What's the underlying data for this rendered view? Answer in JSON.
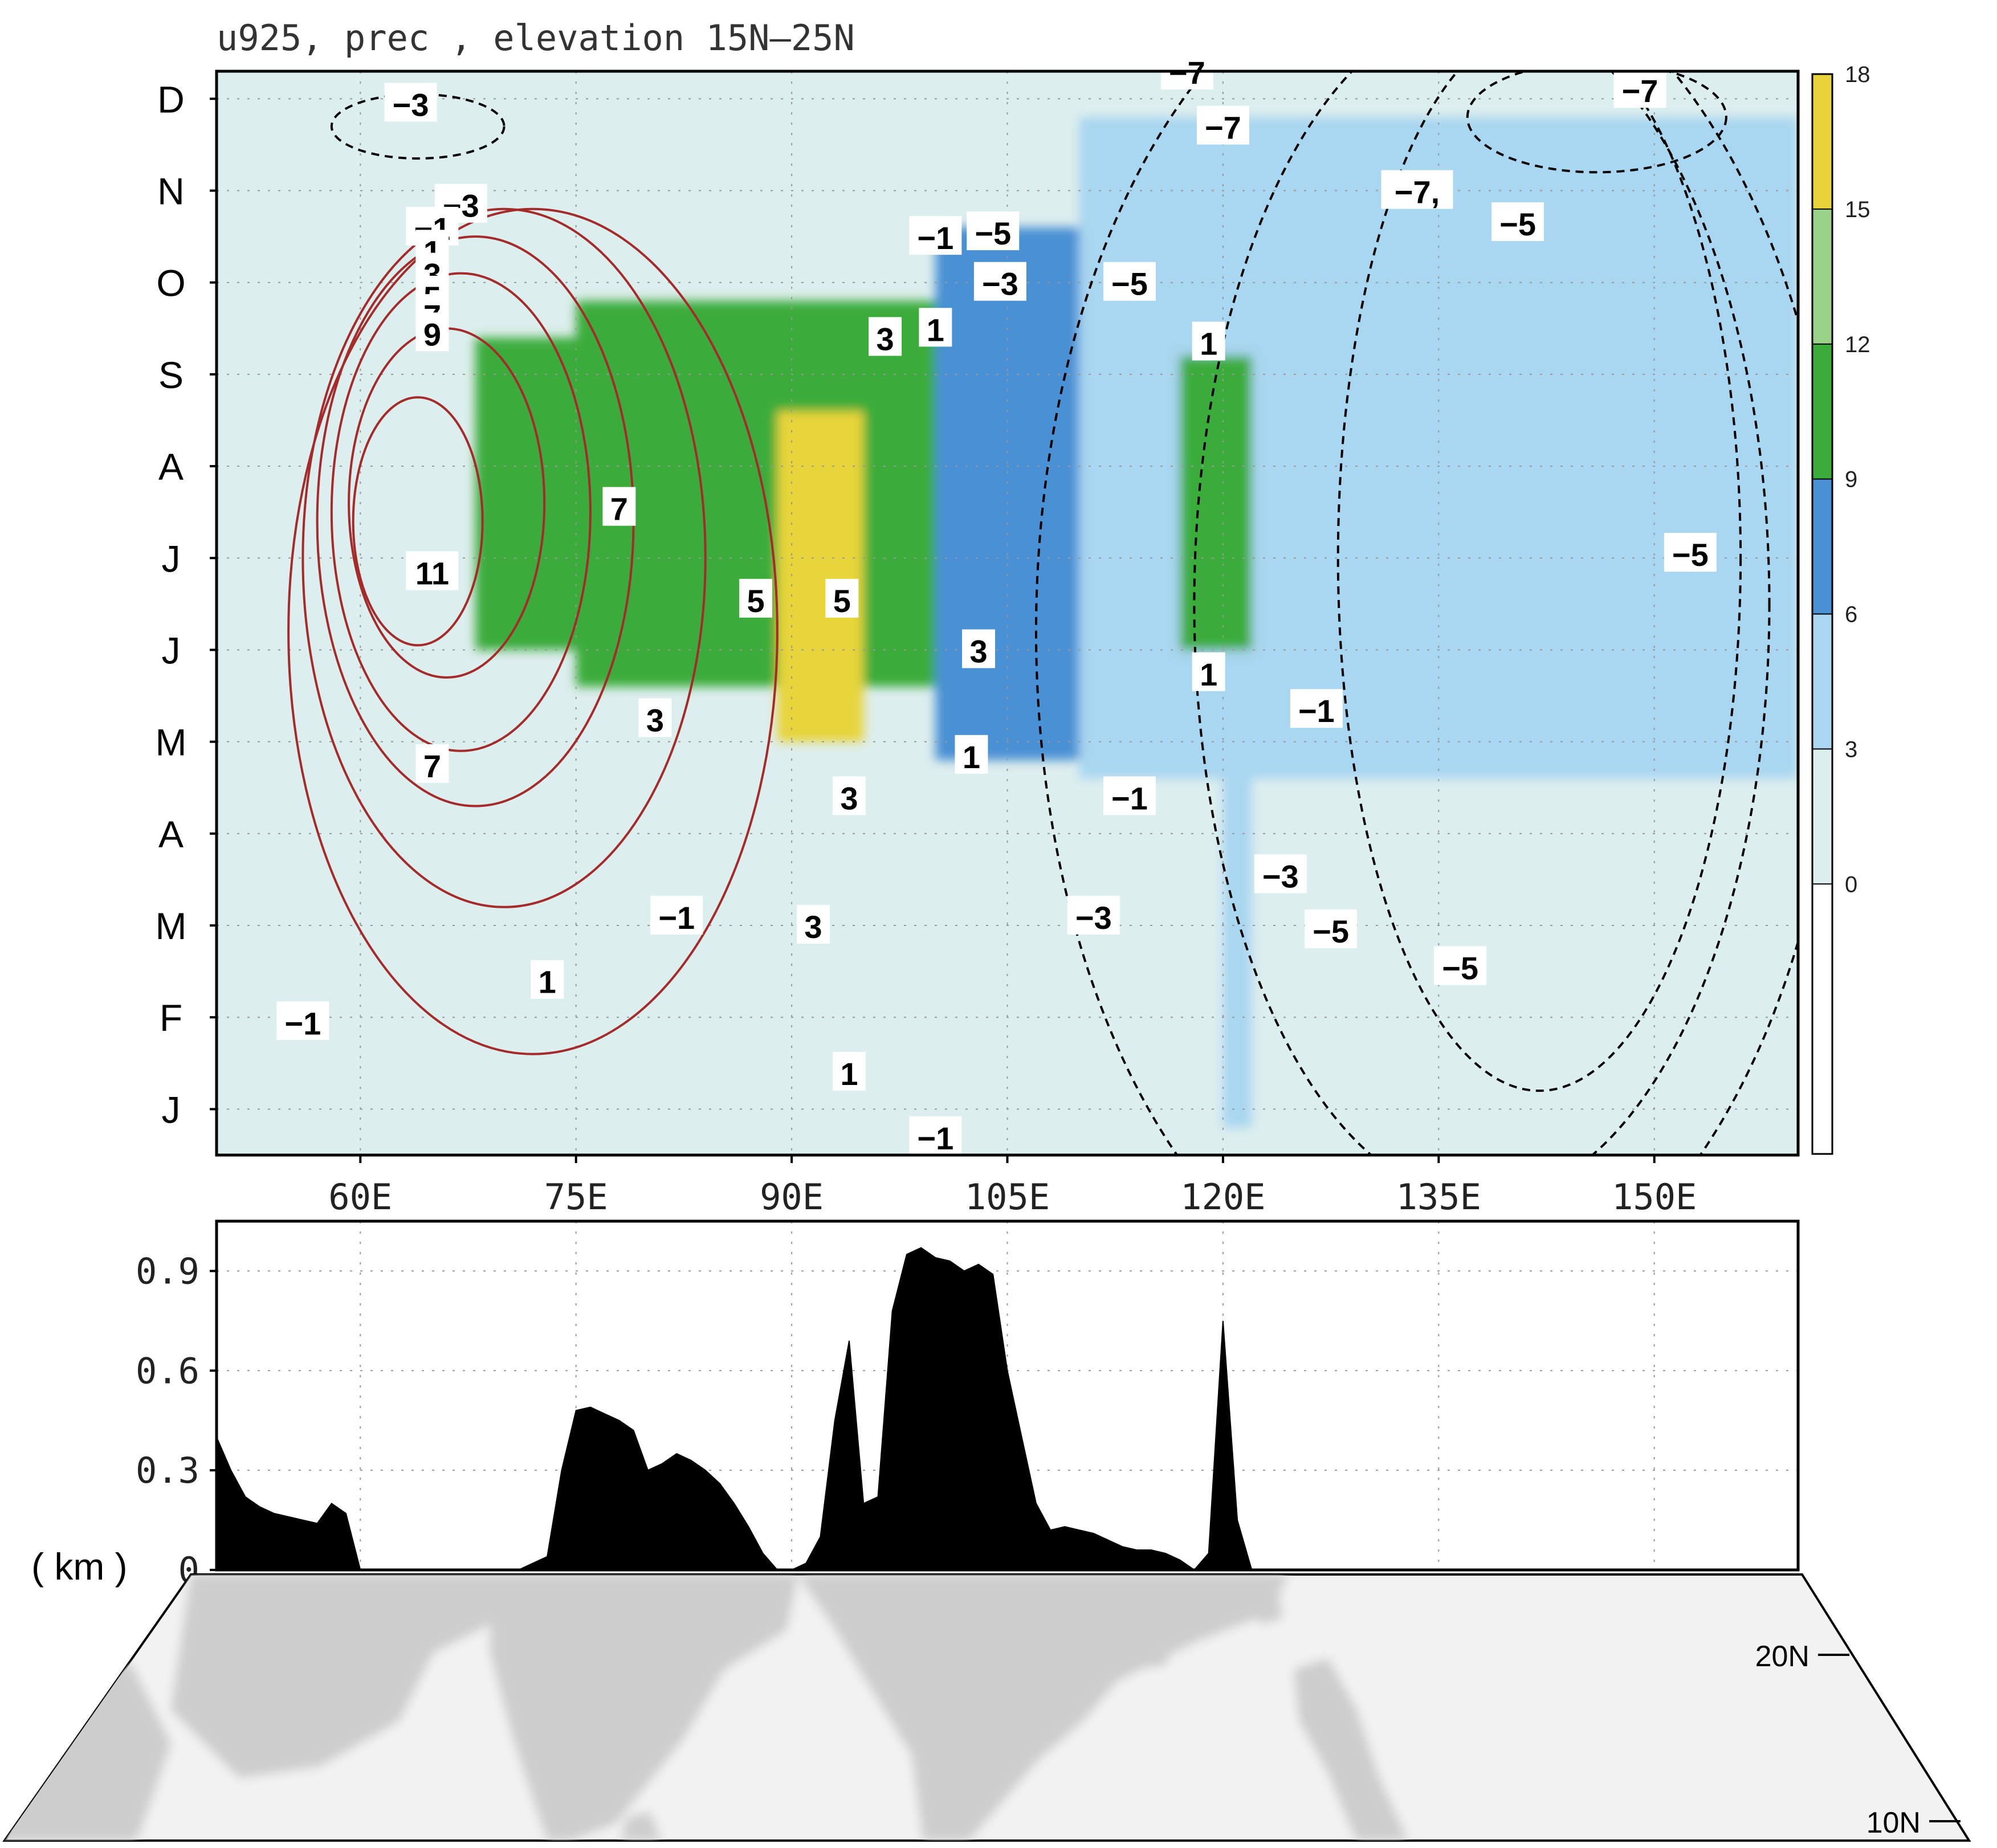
{
  "title": "u925, prec , elevation  15N–25N",
  "chart_data": [
    {
      "type": "heatmap",
      "title": "u925, prec , elevation  15N–25N",
      "x_ticks": [
        "60E",
        "75E",
        "90E",
        "105E",
        "120E",
        "135E",
        "150E"
      ],
      "x_tick_values": [
        60,
        75,
        90,
        105,
        120,
        135,
        150
      ],
      "xlim": [
        50,
        160
      ],
      "y_ticks": [
        "J",
        "F",
        "M",
        "A",
        "M",
        "J",
        "J",
        "A",
        "S",
        "O",
        "N",
        "D"
      ],
      "ylim": [
        0.5,
        12.3
      ],
      "colorbar": {
        "levels": [
          0,
          3,
          6,
          9,
          12,
          15,
          18
        ],
        "labels": [
          "0",
          "3",
          "6",
          "9",
          "12",
          "15",
          "18"
        ],
        "colors": [
          "#ffffff",
          "#ddeeee",
          "#a9d6f0",
          "#4a90d4",
          "#3aac3a",
          "#9ad28a",
          "#e8d43a"
        ]
      },
      "precip_regions": [
        {
          "x0": 68,
          "x1": 75,
          "y0": 6.0,
          "y1": 9.4,
          "value": 9
        },
        {
          "x0": 75,
          "x1": 100,
          "y0": 5.6,
          "y1": 9.8,
          "value": 10
        },
        {
          "x0": 89,
          "x1": 95,
          "y0": 5.0,
          "y1": 8.6,
          "value": 17
        },
        {
          "x0": 100,
          "x1": 110,
          "y0": 4.8,
          "y1": 10.6,
          "value": 6
        },
        {
          "x0": 110,
          "x1": 160,
          "y0": 4.6,
          "y1": 11.8,
          "value": 5
        },
        {
          "x0": 117,
          "x1": 122,
          "y0": 6.0,
          "y1": 9.2,
          "value": 10
        },
        {
          "x0": 120,
          "x1": 122,
          "y0": 0.8,
          "y1": 4.6,
          "value": 4
        }
      ],
      "contour_labels": [
        {
          "text": "−3",
          "x": 63.5,
          "y": 11.95,
          "sign": "neg"
        },
        {
          "text": "−3",
          "x": 67,
          "y": 10.85,
          "sign": "neg"
        },
        {
          "text": "−1",
          "x": 65,
          "y": 10.6,
          "sign": "neg"
        },
        {
          "text": "1",
          "x": 65,
          "y": 10.35,
          "sign": "pos"
        },
        {
          "text": "3",
          "x": 65,
          "y": 10.1,
          "sign": "pos"
        },
        {
          "text": "5",
          "x": 65,
          "y": 9.85,
          "sign": "pos"
        },
        {
          "text": "7",
          "x": 65,
          "y": 9.65,
          "sign": "pos"
        },
        {
          "text": "9",
          "x": 65,
          "y": 9.45,
          "sign": "pos"
        },
        {
          "text": "11",
          "x": 65,
          "y": 6.85,
          "sign": "pos"
        },
        {
          "text": "7",
          "x": 65,
          "y": 4.75,
          "sign": "pos"
        },
        {
          "text": "7",
          "x": 78,
          "y": 7.55,
          "sign": "pos"
        },
        {
          "text": "3",
          "x": 80.5,
          "y": 5.25,
          "sign": "pos"
        },
        {
          "text": "5",
          "x": 87.5,
          "y": 6.55,
          "sign": "pos"
        },
        {
          "text": "5",
          "x": 93.5,
          "y": 6.55,
          "sign": "pos"
        },
        {
          "text": "3",
          "x": 96.5,
          "y": 9.4,
          "sign": "pos"
        },
        {
          "text": "1",
          "x": 100,
          "y": 9.5,
          "sign": "pos"
        },
        {
          "text": "3",
          "x": 94,
          "y": 4.4,
          "sign": "pos"
        },
        {
          "text": "3",
          "x": 91.5,
          "y": 3.0,
          "sign": "pos"
        },
        {
          "text": "1",
          "x": 94,
          "y": 1.4,
          "sign": "pos"
        },
        {
          "text": "1",
          "x": 73,
          "y": 2.4,
          "sign": "pos"
        },
        {
          "text": "−1",
          "x": 82,
          "y": 3.1,
          "sign": "neg"
        },
        {
          "text": "−1",
          "x": 56,
          "y": 1.95,
          "sign": "neg"
        },
        {
          "text": "−1",
          "x": 100,
          "y": 0.7,
          "sign": "neg"
        },
        {
          "text": "3",
          "x": 103,
          "y": 6.0,
          "sign": "pos"
        },
        {
          "text": "1",
          "x": 102.5,
          "y": 4.85,
          "sign": "pos"
        },
        {
          "text": "−1",
          "x": 100,
          "y": 10.5,
          "sign": "neg"
        },
        {
          "text": "−5",
          "x": 104,
          "y": 10.55,
          "sign": "neg"
        },
        {
          "text": "−3",
          "x": 104.5,
          "y": 10.0,
          "sign": "neg"
        },
        {
          "text": "−5",
          "x": 113.5,
          "y": 10.0,
          "sign": "neg"
        },
        {
          "text": "−7",
          "x": 117.5,
          "y": 12.3,
          "sign": "neg"
        },
        {
          "text": "−7",
          "x": 120,
          "y": 11.7,
          "sign": "neg"
        },
        {
          "text": "1",
          "x": 119,
          "y": 9.35,
          "sign": "pos"
        },
        {
          "text": "1",
          "x": 119,
          "y": 5.75,
          "sign": "pos"
        },
        {
          "text": "−1",
          "x": 113.5,
          "y": 4.4,
          "sign": "neg"
        },
        {
          "text": "−1",
          "x": 126.5,
          "y": 5.35,
          "sign": "neg"
        },
        {
          "text": "−3",
          "x": 124,
          "y": 3.55,
          "sign": "neg"
        },
        {
          "text": "−3",
          "x": 111,
          "y": 3.1,
          "sign": "neg"
        },
        {
          "text": "−5",
          "x": 127.5,
          "y": 2.95,
          "sign": "neg"
        },
        {
          "text": "−5",
          "x": 136.5,
          "y": 2.55,
          "sign": "neg"
        },
        {
          "text": "−7,",
          "x": 133.5,
          "y": 11.0,
          "sign": "neg"
        },
        {
          "text": "−5",
          "x": 140.5,
          "y": 10.65,
          "sign": "neg"
        },
        {
          "text": "−7",
          "x": 149,
          "y": 12.1,
          "sign": "neg"
        },
        {
          "text": "−5",
          "x": 152.5,
          "y": 7.05,
          "sign": "neg"
        }
      ],
      "positive_contours": [
        {
          "level": 11,
          "cx": 64,
          "cy": 7.4,
          "rx": 4.5,
          "ry": 1.35
        },
        {
          "level": 9,
          "cx": 66,
          "cy": 7.6,
          "rx": 6.8,
          "ry": 1.9
        },
        {
          "level": 7,
          "cx": 67,
          "cy": 7.5,
          "rx": 9,
          "ry": 2.6
        },
        {
          "level": 5,
          "cx": 68,
          "cy": 7.4,
          "rx": 11,
          "ry": 3.1
        },
        {
          "level": 3,
          "cx": 70,
          "cy": 7.0,
          "rx": 14,
          "ry": 3.8
        },
        {
          "level": 1,
          "cx": 72,
          "cy": 6.2,
          "rx": 17,
          "ry": 4.6
        }
      ],
      "negative_contours": [
        {
          "level": -1,
          "cx": 135,
          "cy": 6.2,
          "rx": 28,
          "ry": 7.5
        },
        {
          "level": -3,
          "cx": 138,
          "cy": 6.5,
          "rx": 20,
          "ry": 6.5
        },
        {
          "level": -5,
          "cx": 142,
          "cy": 7.0,
          "rx": 14,
          "ry": 5.8
        },
        {
          "level": -7,
          "cx": 146,
          "cy": 11.8,
          "rx": 9,
          "ry": 0.6
        },
        {
          "level": -3,
          "cx": 64,
          "cy": 11.7,
          "rx": 6,
          "ry": 0.35
        }
      ]
    },
    {
      "type": "area",
      "xlabel": "",
      "ylabel": "( km )",
      "y_ticks": [
        "0",
        "0.3",
        "0.6",
        "0.9"
      ],
      "ylim": [
        0,
        1.05
      ],
      "xlim": [
        50,
        160
      ],
      "x": [
        50,
        51,
        52,
        53,
        54,
        55,
        56,
        57,
        58,
        59,
        60,
        61,
        62,
        63,
        64,
        65,
        66,
        67,
        68,
        69,
        70,
        71,
        72,
        73,
        74,
        75,
        76,
        77,
        78,
        79,
        80,
        81,
        82,
        83,
        84,
        85,
        86,
        87,
        88,
        89,
        90,
        91,
        92,
        93,
        94,
        95,
        96,
        97,
        98,
        99,
        100,
        101,
        102,
        103,
        104,
        105,
        106,
        107,
        108,
        109,
        110,
        111,
        112,
        113,
        114,
        115,
        116,
        117,
        118,
        119,
        120,
        121,
        122,
        123,
        124,
        125,
        126,
        127,
        128,
        129,
        130,
        131,
        132,
        133,
        134,
        135,
        136,
        137,
        138,
        139,
        140,
        141,
        142,
        143,
        144,
        145,
        146,
        147,
        148,
        149,
        150,
        151,
        152,
        153,
        154,
        155,
        156,
        157,
        158,
        159,
        160
      ],
      "values": [
        0.4,
        0.3,
        0.22,
        0.19,
        0.17,
        0.16,
        0.15,
        0.14,
        0.2,
        0.17,
        0.0,
        0.0,
        0.0,
        0.0,
        0.0,
        0.0,
        0.0,
        0.0,
        0.0,
        0.0,
        0.0,
        0.0,
        0.02,
        0.04,
        0.3,
        0.48,
        0.49,
        0.47,
        0.45,
        0.42,
        0.3,
        0.32,
        0.35,
        0.33,
        0.3,
        0.26,
        0.2,
        0.13,
        0.05,
        0.0,
        0.0,
        0.02,
        0.1,
        0.45,
        0.69,
        0.2,
        0.22,
        0.78,
        0.95,
        0.97,
        0.94,
        0.93,
        0.9,
        0.92,
        0.89,
        0.6,
        0.4,
        0.2,
        0.12,
        0.13,
        0.12,
        0.11,
        0.09,
        0.07,
        0.06,
        0.06,
        0.05,
        0.03,
        0.0,
        0.05,
        0.75,
        0.15,
        0.0,
        0.0,
        0.0,
        0.0,
        0.0,
        0.0,
        0.0,
        0.0,
        0.0,
        0.0,
        0.0,
        0.0,
        0.0,
        0.0,
        0.0,
        0.0,
        0.0,
        0.0,
        0.0,
        0.0,
        0.0,
        0.0,
        0.0,
        0.0,
        0.0,
        0.0,
        0.0,
        0.0,
        0.0,
        0.0,
        0.0,
        0.0,
        0.0,
        0.0,
        0.0,
        0.0,
        0.0,
        0.0,
        0.0
      ]
    }
  ],
  "map": {
    "lat_labels": [
      "20N",
      "10N"
    ]
  },
  "colors": {
    "positive_contour": "#a52a2a",
    "negative_contour": "#000000",
    "terrain": "#000000",
    "land": "#c8c8c8",
    "sea": "#f2f2f2"
  }
}
